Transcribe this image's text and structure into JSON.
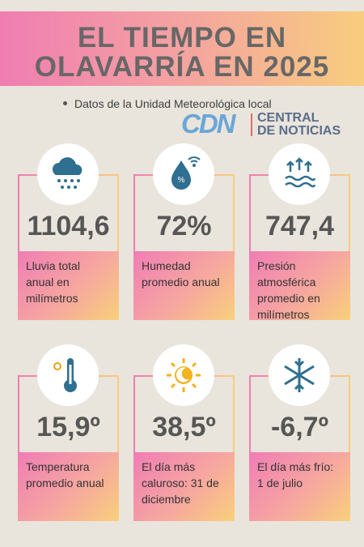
{
  "header": {
    "title_lines": [
      "EL TIEMPO EN",
      "OLAVARRÍA EN 2025"
    ],
    "subtitle": "Datos de la Unidad Meteorológica local"
  },
  "logo": {
    "mark": "CDN",
    "lines": [
      "CENTRAL",
      "DE NOTICIAS"
    ]
  },
  "cards": [
    {
      "value": "1104,6",
      "label": "Lluvia total anual en milímetros"
    },
    {
      "value": "72%",
      "label": "Humedad promedio anual"
    },
    {
      "value": "747,4",
      "label": "Presión atmosférica promedio en milímetros"
    },
    {
      "value": "15,9º",
      "label": "Temperatura promedio anual"
    },
    {
      "value": "38,5º",
      "label": "El día más caluroso: 31 de diciembre"
    },
    {
      "value": "-6,7º",
      "label": "El día más frío: 1 de julio"
    }
  ]
}
